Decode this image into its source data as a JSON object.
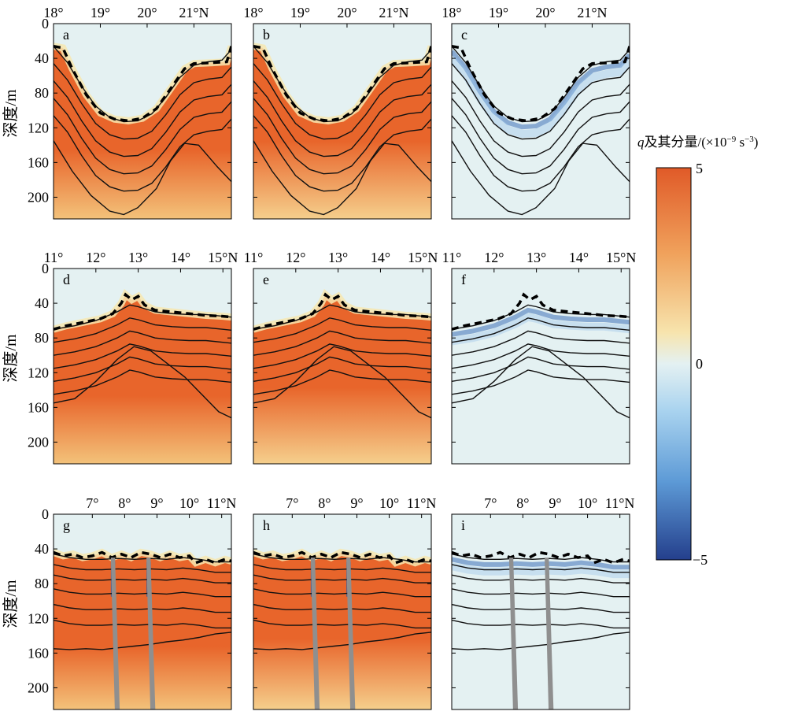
{
  "colors": {
    "positive": "#e8652b",
    "positive_light": "#f3c27a",
    "neutral": "#e4f1f2",
    "negative": "#2e5ea8",
    "negative_mid": "#7fb1e3",
    "contour": "#111111",
    "mask": "#8f8f8f"
  },
  "colorbar": {
    "title_var": "q",
    "title_rest": "及其分量/(×10",
    "title_exp1": "−9",
    "title_unit": " s",
    "title_exp2": "−3",
    "title_close": ")",
    "ticks": [
      {
        "value": 5,
        "label": "5"
      },
      {
        "value": 0,
        "label": "0"
      },
      {
        "value": -5,
        "label": "−5"
      }
    ],
    "range": [
      -5,
      5
    ]
  },
  "chart_data": {
    "type": "heatmap",
    "ylabel": "深度/m",
    "yticks": [
      "0",
      "40",
      "80",
      "120",
      "160",
      "200"
    ],
    "ylim": [
      0,
      225
    ],
    "rows": [
      {
        "xticks": [
          {
            "value": 18,
            "label": "18°"
          },
          {
            "value": 19,
            "label": "19°"
          },
          {
            "value": 20,
            "label": "20°"
          },
          {
            "value": 21,
            "label": "21°N"
          }
        ],
        "xlim": [
          18,
          21.8
        ],
        "contour_base": [
          [
            18.0,
            26
          ],
          [
            18.3,
            45
          ],
          [
            18.6,
            72
          ],
          [
            18.9,
            95
          ],
          [
            19.2,
            108
          ],
          [
            19.5,
            113
          ],
          [
            19.8,
            112
          ],
          [
            20.1,
            104
          ],
          [
            20.4,
            85
          ],
          [
            20.7,
            62
          ],
          [
            21.0,
            48
          ],
          [
            21.3,
            44
          ],
          [
            21.6,
            42
          ],
          [
            21.8,
            30
          ]
        ],
        "contour_offsets": [
          0,
          20,
          40,
          60,
          80
        ],
        "deep_contour": [
          [
            18.0,
            135
          ],
          [
            18.4,
            170
          ],
          [
            18.8,
            198
          ],
          [
            19.2,
            216
          ],
          [
            19.5,
            220
          ],
          [
            19.8,
            212
          ],
          [
            20.2,
            190
          ],
          [
            20.5,
            158
          ],
          [
            20.8,
            138
          ],
          [
            21.1,
            140
          ],
          [
            21.5,
            165
          ],
          [
            21.8,
            182
          ]
        ],
        "mixed_layer": [
          [
            18.0,
            26
          ],
          [
            18.2,
            28
          ],
          [
            18.4,
            52
          ],
          [
            18.7,
            82
          ],
          [
            19.0,
            103
          ],
          [
            19.3,
            110
          ],
          [
            19.6,
            112
          ],
          [
            19.9,
            109
          ],
          [
            20.2,
            98
          ],
          [
            20.5,
            75
          ],
          [
            20.8,
            52
          ],
          [
            21.0,
            46
          ],
          [
            21.4,
            45
          ],
          [
            21.7,
            44
          ],
          [
            21.8,
            26
          ]
        ],
        "masks": [],
        "panels": [
          {
            "label": "a",
            "kind": "total"
          },
          {
            "label": "b",
            "kind": "vertical"
          },
          {
            "label": "c",
            "kind": "baroclinic"
          }
        ]
      },
      {
        "xticks": [
          {
            "value": 11,
            "label": "11°"
          },
          {
            "value": 12,
            "label": "12°"
          },
          {
            "value": 13,
            "label": "13°"
          },
          {
            "value": 14,
            "label": "14°"
          },
          {
            "value": 15,
            "label": "15°N"
          }
        ],
        "xlim": [
          11,
          15.2
        ],
        "contour_base": [
          [
            11.0,
            70
          ],
          [
            11.5,
            66
          ],
          [
            12.0,
            60
          ],
          [
            12.5,
            50
          ],
          [
            12.8,
            42
          ],
          [
            13.0,
            44
          ],
          [
            13.4,
            50
          ],
          [
            13.8,
            52
          ],
          [
            14.2,
            53
          ],
          [
            14.6,
            53
          ],
          [
            15.0,
            55
          ],
          [
            15.2,
            56
          ]
        ],
        "contour_offsets": [
          0,
          15,
          30,
          45,
          60,
          75
        ],
        "deep_contour": [
          [
            11.0,
            155
          ],
          [
            11.5,
            150
          ],
          [
            12.0,
            130
          ],
          [
            12.5,
            105
          ],
          [
            12.9,
            90
          ],
          [
            13.3,
            95
          ],
          [
            13.7,
            110
          ],
          [
            14.1,
            125
          ],
          [
            14.5,
            145
          ],
          [
            14.9,
            165
          ],
          [
            15.2,
            172
          ]
        ],
        "mixed_layer": [
          [
            11.0,
            70
          ],
          [
            11.3,
            66
          ],
          [
            11.7,
            62
          ],
          [
            12.1,
            58
          ],
          [
            12.4,
            52
          ],
          [
            12.6,
            40
          ],
          [
            12.7,
            30
          ],
          [
            12.85,
            36
          ],
          [
            13.0,
            32
          ],
          [
            13.15,
            42
          ],
          [
            13.4,
            48
          ],
          [
            13.8,
            50
          ],
          [
            14.2,
            52
          ],
          [
            14.6,
            54
          ],
          [
            15.0,
            55
          ],
          [
            15.2,
            56
          ]
        ],
        "masks": [],
        "panels": [
          {
            "label": "d",
            "kind": "total"
          },
          {
            "label": "e",
            "kind": "vertical"
          },
          {
            "label": "f",
            "kind": "baroclinic"
          }
        ]
      },
      {
        "xticks": [
          {
            "value": 7,
            "label": "7°"
          },
          {
            "value": 8,
            "label": "8°"
          },
          {
            "value": 9,
            "label": "9°"
          },
          {
            "value": 10,
            "label": "10°"
          },
          {
            "value": 11,
            "label": "11°N"
          }
        ],
        "xlim": [
          5.8,
          11.3
        ],
        "contour_base": [
          [
            5.8,
            46
          ],
          [
            6.3,
            50
          ],
          [
            6.8,
            52
          ],
          [
            7.3,
            52
          ],
          [
            7.8,
            51
          ],
          [
            8.3,
            52
          ],
          [
            8.8,
            51
          ],
          [
            9.3,
            52
          ],
          [
            9.8,
            50
          ],
          [
            10.3,
            52
          ],
          [
            10.8,
            55
          ],
          [
            11.3,
            55
          ]
        ],
        "contour_offsets": [
          0,
          12,
          24,
          40,
          58,
          76
        ],
        "deep_contour": [
          [
            5.8,
            155
          ],
          [
            6.3,
            156
          ],
          [
            6.8,
            155
          ],
          [
            7.3,
            156
          ],
          [
            7.8,
            154
          ],
          [
            8.3,
            152
          ],
          [
            8.8,
            150
          ],
          [
            9.3,
            147
          ],
          [
            9.8,
            145
          ],
          [
            10.3,
            142
          ],
          [
            10.8,
            138
          ],
          [
            11.3,
            136
          ]
        ],
        "mixed_layer": [
          [
            5.8,
            44
          ],
          [
            6.1,
            48
          ],
          [
            6.4,
            46
          ],
          [
            6.7,
            50
          ],
          [
            7.0,
            48
          ],
          [
            7.3,
            44
          ],
          [
            7.6,
            50
          ],
          [
            7.9,
            46
          ],
          [
            8.2,
            50
          ],
          [
            8.5,
            44
          ],
          [
            8.8,
            46
          ],
          [
            9.1,
            50
          ],
          [
            9.4,
            46
          ],
          [
            9.7,
            50
          ],
          [
            10.0,
            48
          ],
          [
            10.2,
            56
          ],
          [
            10.5,
            52
          ],
          [
            10.8,
            56
          ],
          [
            11.1,
            52
          ],
          [
            11.3,
            54
          ]
        ],
        "masks": [
          [
            7.5,
            7.75
          ],
          [
            8.6,
            8.85
          ]
        ],
        "panels": [
          {
            "label": "g",
            "kind": "total"
          },
          {
            "label": "h",
            "kind": "vertical"
          },
          {
            "label": "i",
            "kind": "baroclinic"
          }
        ]
      }
    ]
  }
}
